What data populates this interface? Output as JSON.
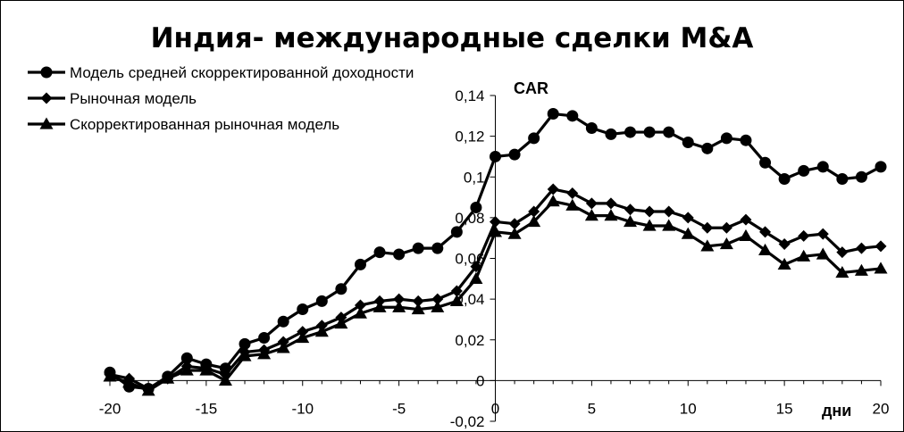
{
  "chart_data": {
    "type": "line",
    "title": "Индия- международные сделки M&A",
    "ylabel": "CAR",
    "xlabel": "дни",
    "xlim": [
      -20,
      20
    ],
    "ylim": [
      -0.02,
      0.14
    ],
    "x_ticks": [
      "-20",
      "-15",
      "-10",
      "-5",
      "0",
      "5",
      "10",
      "15",
      "20"
    ],
    "y_ticks": [
      "-0,02",
      "0",
      "0,02",
      "0,04",
      "0,06",
      "0,08",
      "0,1",
      "0,12",
      "0,14"
    ],
    "grid": false,
    "legend_position": "top-left",
    "x": [
      -20,
      -19,
      -18,
      -17,
      -16,
      -15,
      -14,
      -13,
      -12,
      -11,
      -10,
      -9,
      -8,
      -7,
      -6,
      -5,
      -4,
      -3,
      -2,
      -1,
      0,
      1,
      2,
      3,
      4,
      5,
      6,
      7,
      8,
      9,
      10,
      11,
      12,
      13,
      14,
      15,
      16,
      17,
      18,
      19,
      20
    ],
    "series": [
      {
        "name": "Модель средней скорректированной доходности",
        "marker": "circle",
        "color": "#000000",
        "values": [
          0.004,
          -0.003,
          -0.004,
          0.002,
          0.011,
          0.008,
          0.006,
          0.018,
          0.021,
          0.029,
          0.035,
          0.039,
          0.045,
          0.057,
          0.063,
          0.062,
          0.065,
          0.065,
          0.073,
          0.085,
          0.11,
          0.111,
          0.119,
          0.131,
          0.13,
          0.124,
          0.121,
          0.122,
          0.122,
          0.122,
          0.117,
          0.114,
          0.119,
          0.118,
          0.107,
          0.099,
          0.103,
          0.105,
          0.099,
          0.1,
          0.105
        ]
      },
      {
        "name": "Рыночная модель",
        "marker": "diamond",
        "color": "#000000",
        "values": [
          0.003,
          0.001,
          -0.004,
          0.001,
          0.007,
          0.006,
          0.003,
          0.014,
          0.015,
          0.019,
          0.024,
          0.027,
          0.031,
          0.037,
          0.039,
          0.04,
          0.039,
          0.04,
          0.044,
          0.056,
          0.078,
          0.077,
          0.083,
          0.094,
          0.092,
          0.087,
          0.087,
          0.084,
          0.083,
          0.083,
          0.08,
          0.075,
          0.075,
          0.079,
          0.073,
          0.067,
          0.071,
          0.072,
          0.063,
          0.065,
          0.066
        ]
      },
      {
        "name": "Скорректированная рыночная модель",
        "marker": "triangle",
        "color": "#000000",
        "values": [
          0.002,
          -0.001,
          -0.005,
          0.001,
          0.005,
          0.005,
          0.0,
          0.012,
          0.013,
          0.016,
          0.021,
          0.024,
          0.028,
          0.033,
          0.036,
          0.036,
          0.035,
          0.036,
          0.039,
          0.05,
          0.073,
          0.072,
          0.078,
          0.088,
          0.086,
          0.081,
          0.081,
          0.078,
          0.076,
          0.076,
          0.072,
          0.066,
          0.067,
          0.071,
          0.064,
          0.057,
          0.061,
          0.062,
          0.053,
          0.054,
          0.055
        ]
      }
    ]
  }
}
